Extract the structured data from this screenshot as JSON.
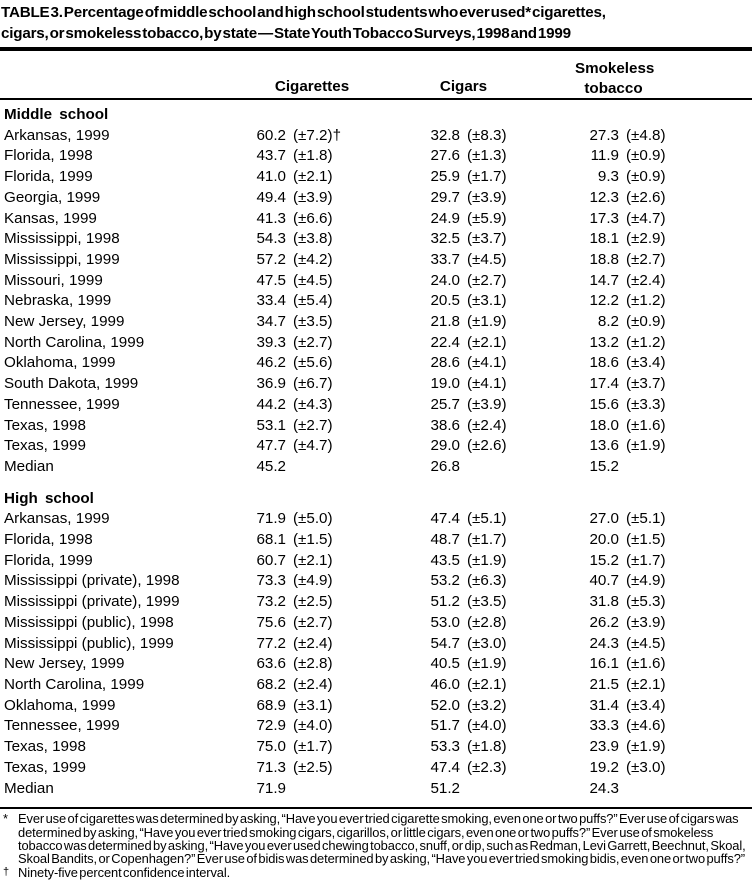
{
  "title": "TABLE 3. Percentage of middle school and high school students who ever used* cigarettes,\ncigars, or smokeless tobacco, by state — State Youth Tobacco Surveys, 1998 and 1999",
  "header": {
    "cigarettes": "Cigarettes",
    "cigars": "Cigars",
    "smokeless": "Smokeless\ntobacco"
  },
  "sections": [
    {
      "label": "Middle school",
      "rows": [
        {
          "state": "Arkansas, 1999",
          "cig": "60.2",
          "cig_ci": "(±7.2)†",
          "cigar": "32.8",
          "cigar_ci": "(±8.3)",
          "smk": "27.3",
          "smk_ci": "(±4.8)"
        },
        {
          "state": "Florida, 1998",
          "cig": "43.7",
          "cig_ci": "(±1.8)",
          "cigar": "27.6",
          "cigar_ci": "(±1.3)",
          "smk": "11.9",
          "smk_ci": "(±0.9)"
        },
        {
          "state": "Florida, 1999",
          "cig": "41.0",
          "cig_ci": "(±2.1)",
          "cigar": "25.9",
          "cigar_ci": "(±1.7)",
          "smk": "9.3",
          "smk_ci": "(±0.9)"
        },
        {
          "state": "Georgia, 1999",
          "cig": "49.4",
          "cig_ci": "(±3.9)",
          "cigar": "29.7",
          "cigar_ci": "(±3.9)",
          "smk": "12.3",
          "smk_ci": "(±2.6)"
        },
        {
          "state": "Kansas, 1999",
          "cig": "41.3",
          "cig_ci": "(±6.6)",
          "cigar": "24.9",
          "cigar_ci": "(±5.9)",
          "smk": "17.3",
          "smk_ci": "(±4.7)"
        },
        {
          "state": "Mississippi, 1998",
          "cig": "54.3",
          "cig_ci": "(±3.8)",
          "cigar": "32.5",
          "cigar_ci": "(±3.7)",
          "smk": "18.1",
          "smk_ci": "(±2.9)"
        },
        {
          "state": "Mississippi, 1999",
          "cig": "57.2",
          "cig_ci": "(±4.2)",
          "cigar": "33.7",
          "cigar_ci": "(±4.5)",
          "smk": "18.8",
          "smk_ci": "(±2.7)"
        },
        {
          "state": "Missouri, 1999",
          "cig": "47.5",
          "cig_ci": "(±4.5)",
          "cigar": "24.0",
          "cigar_ci": "(±2.7)",
          "smk": "14.7",
          "smk_ci": "(±2.4)"
        },
        {
          "state": "Nebraska, 1999",
          "cig": "33.4",
          "cig_ci": "(±5.4)",
          "cigar": "20.5",
          "cigar_ci": "(±3.1)",
          "smk": "12.2",
          "smk_ci": "(±1.2)"
        },
        {
          "state": "New Jersey, 1999",
          "cig": "34.7",
          "cig_ci": "(±3.5)",
          "cigar": "21.8",
          "cigar_ci": "(±1.9)",
          "smk": "8.2",
          "smk_ci": "(±0.9)"
        },
        {
          "state": "North Carolina, 1999",
          "cig": "39.3",
          "cig_ci": "(±2.7)",
          "cigar": "22.4",
          "cigar_ci": "(±2.1)",
          "smk": "13.2",
          "smk_ci": "(±1.2)"
        },
        {
          "state": "Oklahoma, 1999",
          "cig": "46.2",
          "cig_ci": "(±5.6)",
          "cigar": "28.6",
          "cigar_ci": "(±4.1)",
          "smk": "18.6",
          "smk_ci": "(±3.4)"
        },
        {
          "state": "South Dakota, 1999",
          "cig": "36.9",
          "cig_ci": "(±6.7)",
          "cigar": "19.0",
          "cigar_ci": "(±4.1)",
          "smk": "17.4",
          "smk_ci": "(±3.7)"
        },
        {
          "state": "Tennessee, 1999",
          "cig": "44.2",
          "cig_ci": "(±4.3)",
          "cigar": "25.7",
          "cigar_ci": "(±3.9)",
          "smk": "15.6",
          "smk_ci": "(±3.3)"
        },
        {
          "state": "Texas, 1998",
          "cig": "53.1",
          "cig_ci": "(±2.7)",
          "cigar": "38.6",
          "cigar_ci": "(±2.4)",
          "smk": "18.0",
          "smk_ci": "(±1.6)"
        },
        {
          "state": "Texas, 1999",
          "cig": "47.7",
          "cig_ci": "(±4.7)",
          "cigar": "29.0",
          "cigar_ci": "(±2.6)",
          "smk": "13.6",
          "smk_ci": "(±1.9)"
        }
      ],
      "median": {
        "state": "Median",
        "cig": "45.2",
        "cigar": "26.8",
        "smk": "15.2"
      }
    },
    {
      "label": "High school",
      "rows": [
        {
          "state": "Arkansas, 1999",
          "cig": "71.9",
          "cig_ci": "(±5.0)",
          "cigar": "47.4",
          "cigar_ci": "(±5.1)",
          "smk": "27.0",
          "smk_ci": "(±5.1)"
        },
        {
          "state": "Florida, 1998",
          "cig": "68.1",
          "cig_ci": "(±1.5)",
          "cigar": "48.7",
          "cigar_ci": "(±1.7)",
          "smk": "20.0",
          "smk_ci": "(±1.5)"
        },
        {
          "state": "Florida, 1999",
          "cig": "60.7",
          "cig_ci": "(±2.1)",
          "cigar": "43.5",
          "cigar_ci": "(±1.9)",
          "smk": "15.2",
          "smk_ci": "(±1.7)"
        },
        {
          "state": "Mississippi (private), 1998",
          "cig": "73.3",
          "cig_ci": "(±4.9)",
          "cigar": "53.2",
          "cigar_ci": "(±6.3)",
          "smk": "40.7",
          "smk_ci": "(±4.9)"
        },
        {
          "state": "Mississippi (private), 1999",
          "cig": "73.2",
          "cig_ci": "(±2.5)",
          "cigar": "51.2",
          "cigar_ci": "(±3.5)",
          "smk": "31.8",
          "smk_ci": "(±5.3)"
        },
        {
          "state": "Mississippi (public), 1998",
          "cig": "75.6",
          "cig_ci": "(±2.7)",
          "cigar": "53.0",
          "cigar_ci": "(±2.8)",
          "smk": "26.2",
          "smk_ci": "(±3.9)"
        },
        {
          "state": "Mississippi (public), 1999",
          "cig": "77.2",
          "cig_ci": "(±2.4)",
          "cigar": "54.7",
          "cigar_ci": "(±3.0)",
          "smk": "24.3",
          "smk_ci": "(±4.5)"
        },
        {
          "state": "New Jersey, 1999",
          "cig": "63.6",
          "cig_ci": "(±2.8)",
          "cigar": "40.5",
          "cigar_ci": "(±1.9)",
          "smk": "16.1",
          "smk_ci": "(±1.6)"
        },
        {
          "state": "North Carolina, 1999",
          "cig": "68.2",
          "cig_ci": "(±2.4)",
          "cigar": "46.0",
          "cigar_ci": "(±2.1)",
          "smk": "21.5",
          "smk_ci": "(±2.1)"
        },
        {
          "state": "Oklahoma, 1999",
          "cig": "68.9",
          "cig_ci": "(±3.1)",
          "cigar": "52.0",
          "cigar_ci": "(±3.2)",
          "smk": "31.4",
          "smk_ci": "(±3.4)"
        },
        {
          "state": "Tennessee, 1999",
          "cig": "72.9",
          "cig_ci": "(±4.0)",
          "cigar": "51.7",
          "cigar_ci": "(±4.0)",
          "smk": "33.3",
          "smk_ci": "(±4.6)"
        },
        {
          "state": "Texas, 1998",
          "cig": "75.0",
          "cig_ci": "(±1.7)",
          "cigar": "53.3",
          "cigar_ci": "(±1.8)",
          "smk": "23.9",
          "smk_ci": "(±1.9)"
        },
        {
          "state": "Texas, 1999",
          "cig": "71.3",
          "cig_ci": "(±2.5)",
          "cigar": "47.4",
          "cigar_ci": "(±2.3)",
          "smk": "19.2",
          "smk_ci": "(±3.0)"
        }
      ],
      "median": {
        "state": "Median",
        "cig": "71.9",
        "cigar": "51.2",
        "smk": "24.3"
      }
    }
  ],
  "footnotes": [
    {
      "marker": "*",
      "text": "Ever use of cigarettes was determined by asking, “Have you ever tried cigarette smoking, even one or two puffs?” Ever use of cigars was determined by asking, “Have you ever tried smoking cigars, cigarillos, or little cigars, even one or two puffs?” Ever use of smokeless tobacco was determined by asking, “Have you ever used chewing tobacco, snuff, or dip, such as Redman, Levi Garrett, Beechnut, Skoal, Skoal Bandits, or Copenhagen?” Ever use of bidis was determined by asking, “Have you ever tried smoking bidis, even one or two puffs?”"
    },
    {
      "marker": "†",
      "text": "Ninety-five percent confidence interval."
    }
  ]
}
